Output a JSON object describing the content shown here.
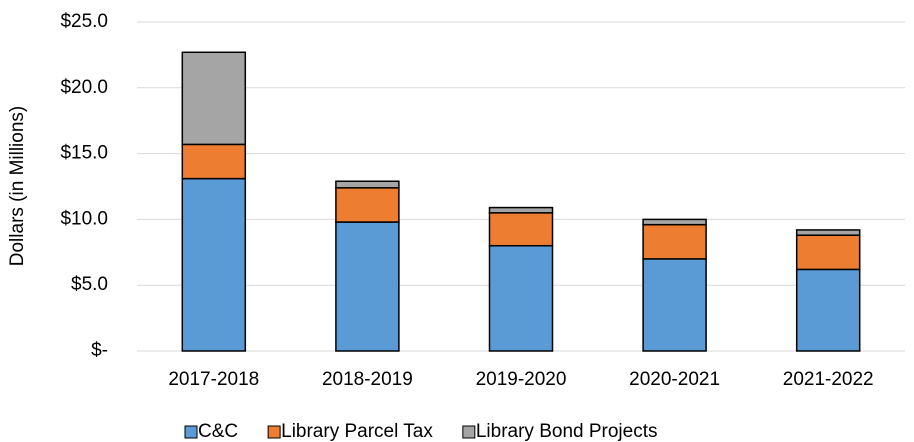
{
  "chart_data": {
    "type": "bar",
    "stacked": true,
    "y_label": "Dollars (in Millions)",
    "categories": [
      "2017-2018",
      "2018-2019",
      "2019-2020",
      "2020-2021",
      "2021-2022"
    ],
    "series": [
      {
        "name": "C&C",
        "color": "#5b9bd5",
        "values": [
          13.1,
          9.8,
          8.0,
          7.0,
          6.2
        ]
      },
      {
        "name": "Library Parcel Tax",
        "color": "#ed7d31",
        "values": [
          2.6,
          2.6,
          2.5,
          2.6,
          2.6
        ]
      },
      {
        "name": "Library Bond Projects",
        "color": "#a5a5a5",
        "values": [
          7.0,
          0.5,
          0.4,
          0.4,
          0.4
        ]
      }
    ],
    "ylim": [
      0,
      25
    ],
    "yticks": [
      {
        "value": 0,
        "label": "$-"
      },
      {
        "value": 5,
        "label": "$5.0"
      },
      {
        "value": 10,
        "label": "$10.0"
      },
      {
        "value": 15,
        "label": "$15.0"
      },
      {
        "value": 20,
        "label": "$20.0"
      },
      {
        "value": 25,
        "label": "$25.0"
      }
    ],
    "grid": true,
    "legend": "bottom"
  }
}
